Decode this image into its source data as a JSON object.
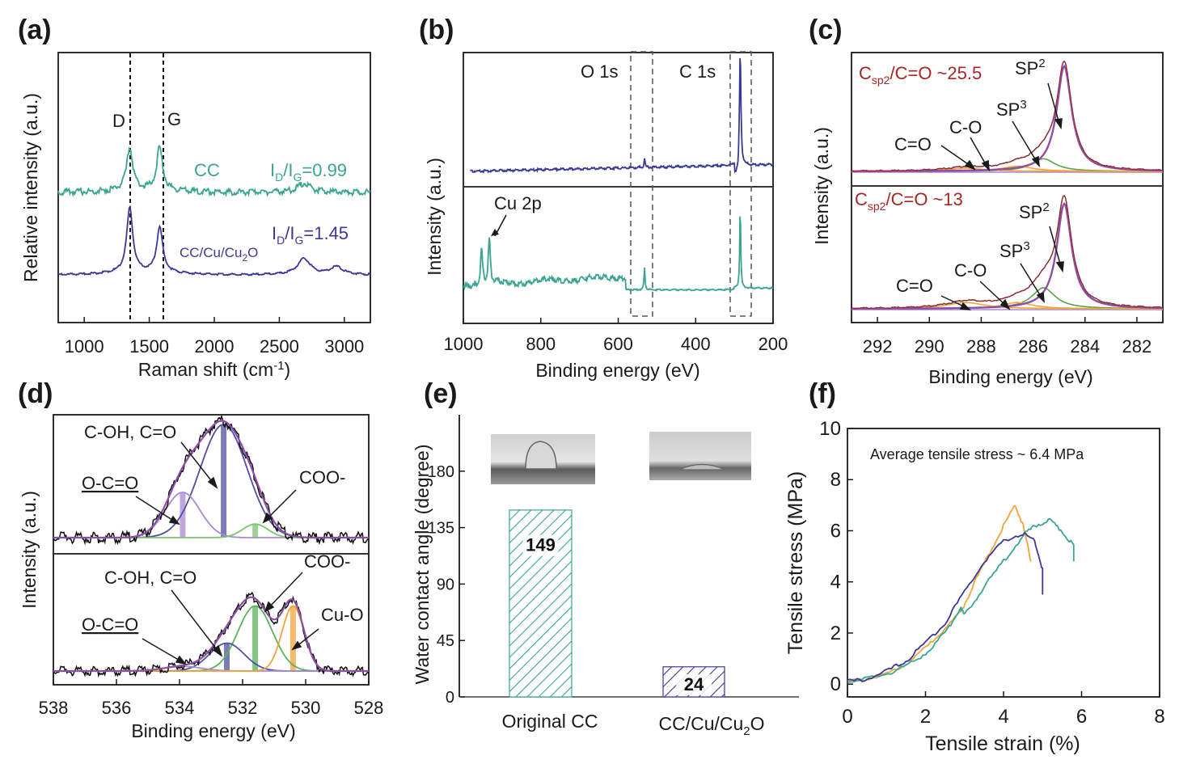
{
  "figure": {
    "panels": [
      "(a)",
      "(b)",
      "(c)",
      "(d)",
      "(e)",
      "(f)"
    ]
  },
  "colors": {
    "teal": "#3aa593",
    "navy": "#3a3a96",
    "purple": "#8e4ea6",
    "darkred": "#a72626",
    "orange": "#f2a33a",
    "green": "#5aa24a",
    "lightpurple": "#a98ad3",
    "black": "#111111"
  },
  "chart_data": [
    {
      "panel": "(a)",
      "type": "line",
      "xlabel": "Raman shift (cm",
      "xlabel_sup": "-1",
      "xlabel_end": ")",
      "ylabel": "Relative intensity (a.u.)",
      "xlim": [
        800,
        3200
      ],
      "xticks": [
        "1000",
        "1500",
        "2000",
        "2500",
        "3000"
      ],
      "dashed_lines": [
        1350,
        1580
      ],
      "peak_labels": [
        "D",
        "G"
      ],
      "series": [
        {
          "name": "CC",
          "ratio_label": "I",
          "ratio_sub1": "D",
          "ratio_mid": "/I",
          "ratio_sub2": "G",
          "ratio_value": "=0.99",
          "peaks": [
            {
              "x": 1350,
              "height": 0.7
            },
            {
              "x": 1580,
              "height": 0.7
            },
            {
              "x": 2690,
              "height": 0.15
            }
          ]
        },
        {
          "name": "CC/Cu/Cu",
          "name_sub": "2",
          "name_end": "O",
          "ratio_label": "I",
          "ratio_sub1": "D",
          "ratio_mid": "/I",
          "ratio_sub2": "G",
          "ratio_value": "=1.45",
          "peaks": [
            {
              "x": 1350,
              "height": 1.0
            },
            {
              "x": 1580,
              "height": 0.7
            },
            {
              "x": 2690,
              "height": 0.25
            },
            {
              "x": 2940,
              "height": 0.12
            }
          ]
        }
      ]
    },
    {
      "panel": "(b)",
      "type": "line",
      "xlabel": "Binding energy (eV)",
      "ylabel": "Intensity (a.u.)",
      "xlim": [
        1000,
        200
      ],
      "xticks": [
        "1000",
        "800",
        "600",
        "400",
        "200"
      ],
      "labels": [
        "O 1s",
        "C 1s",
        "Cu 2p"
      ],
      "peaks_top": [
        {
          "x": 532,
          "height": 0.08
        },
        {
          "x": 284.8,
          "height": 1.0
        }
      ],
      "peaks_bottom": [
        {
          "x": 933,
          "height": 0.5
        },
        {
          "x": 953,
          "height": 0.4
        },
        {
          "x": 532,
          "height": 0.25
        },
        {
          "x": 284.8,
          "height": 0.9
        }
      ]
    },
    {
      "panel": "(c)",
      "type": "line",
      "xlabel": "Binding energy (eV)",
      "ylabel": "Intensity (a.u.)",
      "xlim": [
        293,
        281
      ],
      "xticks": [
        "292",
        "290",
        "288",
        "286",
        "284",
        "282"
      ],
      "subpanels": [
        {
          "ratio_prefix": "C",
          "ratio_sub": "sp2",
          "ratio_text": "/C=O ~25.5",
          "components": [
            "SP",
            "SP",
            "C-O",
            "C=O"
          ],
          "sp2_sup": "2",
          "sp3_sup": "3",
          "peaks": [
            {
              "x": 284.8,
              "height": 1.0
            },
            {
              "x": 285.6,
              "height": 0.12
            },
            {
              "x": 286.6,
              "height": 0.05
            },
            {
              "x": 288.6,
              "height": 0.03
            }
          ]
        },
        {
          "ratio_prefix": "C",
          "ratio_sub": "sp2",
          "ratio_text": "/C=O ~13",
          "components": [
            "SP",
            "SP",
            "C-O",
            "C=O"
          ],
          "sp2_sup": "2",
          "sp3_sup": "3",
          "peaks": [
            {
              "x": 284.8,
              "height": 1.0
            },
            {
              "x": 285.6,
              "height": 0.2
            },
            {
              "x": 286.6,
              "height": 0.06
            },
            {
              "x": 288.6,
              "height": 0.06
            }
          ]
        }
      ]
    },
    {
      "panel": "(d)",
      "type": "line",
      "xlabel": "Binding energy (eV)",
      "ylabel": "Intensity (a.u.)",
      "xlim": [
        538,
        528
      ],
      "xticks": [
        "538",
        "536",
        "534",
        "532",
        "530",
        "528"
      ],
      "subpanels": [
        {
          "labels": [
            "C-OH, C=O",
            "O-C=O",
            "COO-"
          ],
          "peaks": [
            {
              "x": 532.6,
              "height": 1.0
            },
            {
              "x": 533.9,
              "height": 0.4
            },
            {
              "x": 531.6,
              "height": 0.12
            }
          ]
        },
        {
          "labels": [
            "C-OH, C=O",
            "O-C=O",
            "COO-",
            "Cu-O"
          ],
          "peaks": [
            {
              "x": 531.6,
              "height": 0.7
            },
            {
              "x": 532.5,
              "height": 0.3
            },
            {
              "x": 533.9,
              "height": 0.05
            },
            {
              "x": 530.4,
              "height": 0.7
            }
          ]
        }
      ]
    },
    {
      "panel": "(e)",
      "type": "bar",
      "ylabel": "Water contact angle (degree)",
      "categories": [
        "Original CC",
        "CC/Cu/Cu"
      ],
      "category2_sub": "2",
      "category2_end": "O",
      "values": [
        149,
        24
      ],
      "value_labels": [
        "149",
        "24"
      ],
      "ylim": [
        0,
        225
      ],
      "yticks": [
        "0",
        "45",
        "90",
        "135",
        "180"
      ]
    },
    {
      "panel": "(f)",
      "type": "line",
      "xlabel": "Tensile strain (%)",
      "ylabel": "Tensile stress (MPa)",
      "annotation": "Average tensile stress ~ 6.4 MPa",
      "xlim": [
        0,
        8
      ],
      "ylim": [
        -0.5,
        10
      ],
      "xticks": [
        "0",
        "2",
        "4",
        "6",
        "8"
      ],
      "yticks": [
        "0",
        "2",
        "4",
        "6",
        "8",
        "10"
      ],
      "series": [
        {
          "name": "orange",
          "x": [
            0,
            0.5,
            1,
            1.5,
            2,
            2.5,
            2.9,
            3.2,
            3.6,
            4.0,
            4.3,
            4.5,
            4.7
          ],
          "y": [
            0.1,
            0.2,
            0.4,
            0.8,
            1.4,
            2.2,
            2.8,
            3.8,
            5.0,
            6.2,
            7.0,
            6.2,
            4.8
          ]
        },
        {
          "name": "teal",
          "x": [
            0,
            0.5,
            1,
            1.5,
            2,
            2.5,
            2.9,
            3.0,
            3.5,
            4.0,
            4.5,
            4.8,
            5.2,
            5.5,
            5.8,
            5.8
          ],
          "y": [
            0.1,
            0.2,
            0.4,
            0.7,
            1.2,
            2.0,
            3.0,
            2.7,
            3.8,
            4.8,
            5.8,
            6.2,
            6.4,
            6.0,
            5.4,
            4.8
          ]
        },
        {
          "name": "navy",
          "x": [
            0,
            0.5,
            1,
            1.5,
            2,
            2.5,
            3,
            3.5,
            4,
            4.5,
            4.8,
            5.0,
            5.0
          ],
          "y": [
            0.1,
            0.2,
            0.5,
            0.9,
            1.6,
            2.4,
            3.6,
            4.8,
            5.6,
            5.9,
            5.6,
            4.5,
            3.5
          ]
        }
      ]
    }
  ]
}
